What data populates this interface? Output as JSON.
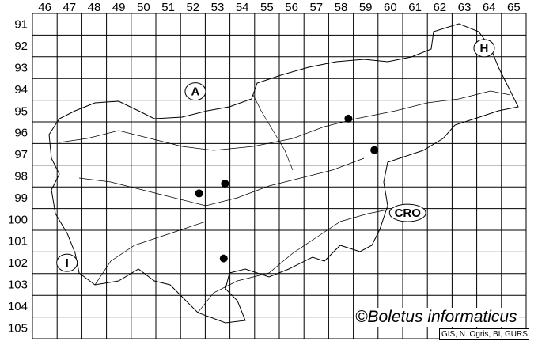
{
  "map": {
    "columns": [
      46,
      47,
      48,
      49,
      50,
      51,
      52,
      53,
      54,
      55,
      56,
      57,
      58,
      59,
      60,
      61,
      62,
      63,
      64,
      65
    ],
    "rows": [
      91,
      92,
      93,
      94,
      95,
      96,
      97,
      98,
      99,
      100,
      101,
      102,
      103,
      104,
      105
    ],
    "country_labels": [
      {
        "text": "A",
        "col": 52.6,
        "row": 94.6
      },
      {
        "text": "H",
        "col": 64.3,
        "row": 92.6
      },
      {
        "text": "CRO",
        "col": 61.2,
        "row": 100.2
      },
      {
        "text": "I",
        "col": 47.4,
        "row": 102.5
      }
    ],
    "records": [
      {
        "col": 58.8,
        "row": 95.85
      },
      {
        "col": 59.85,
        "row": 97.3
      },
      {
        "col": 53.8,
        "row": 98.85
      },
      {
        "col": 52.75,
        "row": 99.3
      },
      {
        "col": 53.75,
        "row": 102.3
      }
    ],
    "marker_color": "#000000"
  },
  "copyright": "©Boletus informaticus",
  "credit": "GIS, N. Ogris, BI, GURS"
}
